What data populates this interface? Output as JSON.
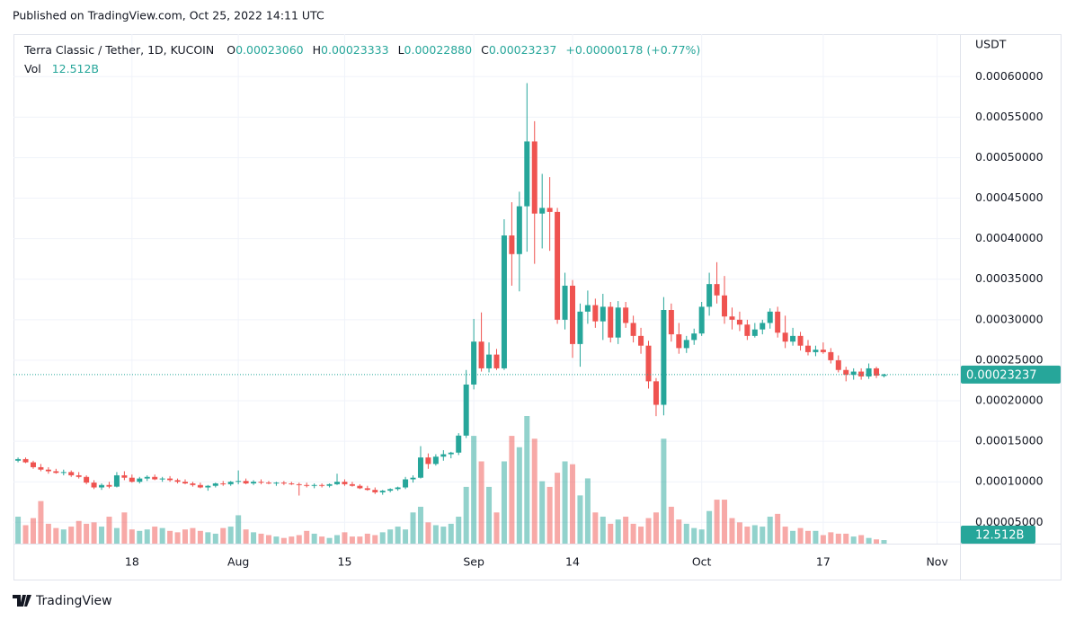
{
  "published": "Published on TradingView.com, Oct 25, 2022 14:11 UTC",
  "footer": "TradingView",
  "chart_data": {
    "type": "candlestick",
    "header": {
      "legend": "Terra Classic / Tether, 1D, KUCOIN",
      "ohlc": [
        {
          "key": "O",
          "label": "0.00023060"
        },
        {
          "key": "H",
          "label": "0.00023333"
        },
        {
          "key": "L",
          "label": "0.00022880"
        },
        {
          "key": "C",
          "label": "0.00023237"
        }
      ],
      "change": "+0.00000178 (+0.77%)",
      "volume_key": "Vol"
    },
    "currency": "USDT",
    "up_color": "#26a69a",
    "down_color": "#ef5350",
    "ohlc": [
      [
        0.000126,
        0.00013,
        0.000124,
        0.000128
      ],
      [
        0.000128,
        0.00013,
        0.000123,
        0.000124
      ],
      [
        0.000124,
        0.000126,
        0.000116,
        0.000118
      ],
      [
        0.000118,
        0.000122,
        0.000113,
        0.000115
      ],
      [
        0.000115,
        0.000118,
        0.00011,
        0.000113
      ],
      [
        0.000113,
        0.000116,
        0.00011,
        0.000111
      ],
      [
        0.000111,
        0.000115,
        0.000108,
        0.000112
      ],
      [
        0.000112,
        0.000114,
        0.000106,
        0.000108
      ],
      [
        0.000108,
        0.000112,
        0.000104,
        0.000106
      ],
      [
        0.000106,
        0.000108,
        9.7e-05,
        9.9e-05
      ],
      [
        9.9e-05,
        0.000102,
        9.1e-05,
        9.3e-05
      ],
      [
        9.3e-05,
        9.8e-05,
        9e-05,
        9.6e-05
      ],
      [
        9.6e-05,
        0.0001,
        9.2e-05,
        9.4e-05
      ],
      [
        9.4e-05,
        0.000112,
        9.3e-05,
        0.000108
      ],
      [
        0.000108,
        0.000113,
        0.000102,
        0.000105
      ],
      [
        0.000105,
        0.000109,
        9.9e-05,
        0.0001
      ],
      [
        0.0001,
        0.000106,
        9.8e-05,
        0.000104
      ],
      [
        0.000104,
        0.000108,
        0.000101,
        0.000106
      ],
      [
        0.000106,
        0.000109,
        0.000102,
        0.000103
      ],
      [
        0.000103,
        0.000106,
        0.0001,
        0.000104
      ],
      [
        0.000104,
        0.000107,
        0.0001,
        0.000102
      ],
      [
        0.000102,
        0.000104,
        9.8e-05,
        0.0001
      ],
      [
        0.0001,
        0.000103,
        9.7e-05,
        9.8e-05
      ],
      [
        9.8e-05,
        0.0001,
        9.4e-05,
        9.6e-05
      ],
      [
        9.6e-05,
        9.9e-05,
        9.2e-05,
        9.3e-05
      ],
      [
        9.3e-05,
        9.6e-05,
        8.9e-05,
        9.5e-05
      ],
      [
        9.5e-05,
        9.9e-05,
        9.3e-05,
        9.8e-05
      ],
      [
        9.8e-05,
        0.000101,
        9.5e-05,
        9.7e-05
      ],
      [
        9.7e-05,
        0.000101,
        9.5e-05,
        0.0001
      ],
      [
        0.0001,
        0.000114,
        9.7e-05,
        0.000101
      ],
      [
        0.000101,
        0.000104,
        9.7e-05,
        9.8e-05
      ],
      [
        9.8e-05,
        0.000102,
        9.6e-05,
        0.0001
      ],
      [
        0.0001,
        0.000103,
        9.7e-05,
        9.9e-05
      ],
      [
        9.9e-05,
        0.000101,
        9.7e-05,
        9.8e-05
      ],
      [
        9.8e-05,
        0.0001,
        9.5e-05,
        9.9e-05
      ],
      [
        9.9e-05,
        0.000101,
        9.6e-05,
        9.8e-05
      ],
      [
        9.8e-05,
        0.0001,
        9.6e-05,
        9.7e-05
      ],
      [
        9.7e-05,
        9.9e-05,
        8.3e-05,
        9.6e-05
      ],
      [
        9.6e-05,
        9.9e-05,
        9.3e-05,
        9.5e-05
      ],
      [
        9.5e-05,
        9.8e-05,
        9.2e-05,
        9.6e-05
      ],
      [
        9.6e-05,
        9.8e-05,
        9.3e-05,
        9.5e-05
      ],
      [
        9.5e-05,
        9.8e-05,
        9.3e-05,
        9.7e-05
      ],
      [
        9.7e-05,
        0.00011,
        9.6e-05,
        0.0001
      ],
      [
        0.0001,
        0.000103,
        9.5e-05,
        9.7e-05
      ],
      [
        9.7e-05,
        0.0001,
        9.4e-05,
        9.5e-05
      ],
      [
        9.5e-05,
        9.7e-05,
        9.1e-05,
        9.2e-05
      ],
      [
        9.2e-05,
        9.5e-05,
        8.9e-05,
        9e-05
      ],
      [
        9e-05,
        9.3e-05,
        8.5e-05,
        8.7e-05
      ],
      [
        8.7e-05,
        9e-05,
        8.4e-05,
        8.9e-05
      ],
      [
        8.9e-05,
        9.2e-05,
        8.7e-05,
        9.1e-05
      ],
      [
        9.1e-05,
        9.4e-05,
        8.9e-05,
        9.3e-05
      ],
      [
        9.3e-05,
        0.000106,
        9.1e-05,
        0.000103
      ],
      [
        0.000103,
        0.000108,
        9.9e-05,
        0.000105
      ],
      [
        0.000105,
        0.000144,
        0.000104,
        0.00013
      ],
      [
        0.00013,
        0.000135,
        0.000116,
        0.000122
      ],
      [
        0.000122,
        0.000134,
        0.00012,
        0.000131
      ],
      [
        0.000131,
        0.000139,
        0.000126,
        0.000134
      ],
      [
        0.000134,
        0.000137,
        0.000129,
        0.000136
      ],
      [
        0.000136,
        0.00016,
        0.000133,
        0.000157
      ],
      [
        0.000157,
        0.000238,
        0.000154,
        0.00022
      ],
      [
        0.00022,
        0.000301,
        0.000214,
        0.000273
      ],
      [
        0.000273,
        0.000309,
        0.000236,
        0.00024
      ],
      [
        0.00024,
        0.000272,
        0.000235,
        0.000257
      ],
      [
        0.000257,
        0.000264,
        0.000238,
        0.00024
      ],
      [
        0.00024,
        0.000424,
        0.000238,
        0.000404
      ],
      [
        0.000404,
        0.000445,
        0.000342,
        0.000381
      ],
      [
        0.000381,
        0.000458,
        0.000335,
        0.00044
      ],
      [
        0.00044,
        0.000592,
        0.000384,
        0.00052
      ],
      [
        0.00052,
        0.000545,
        0.000369,
        0.000431
      ],
      [
        0.000431,
        0.00048,
        0.000388,
        0.000438
      ],
      [
        0.000438,
        0.000476,
        0.000385,
        0.000433
      ],
      [
        0.000433,
        0.000438,
        0.000295,
        0.0003
      ],
      [
        0.0003,
        0.000358,
        0.000288,
        0.000342
      ],
      [
        0.000342,
        0.000349,
        0.000253,
        0.00027
      ],
      [
        0.00027,
        0.00032,
        0.000242,
        0.00031
      ],
      [
        0.00031,
        0.000336,
        0.000295,
        0.000318
      ],
      [
        0.000318,
        0.000326,
        0.00029,
        0.000298
      ],
      [
        0.000298,
        0.000332,
        0.000275,
        0.000316
      ],
      [
        0.000316,
        0.000322,
        0.000272,
        0.000278
      ],
      [
        0.000278,
        0.000323,
        0.00027,
        0.000315
      ],
      [
        0.000315,
        0.000322,
        0.00029,
        0.000296
      ],
      [
        0.000296,
        0.000305,
        0.000272,
        0.00028
      ],
      [
        0.00028,
        0.00029,
        0.000258,
        0.000268
      ],
      [
        0.000268,
        0.000274,
        0.000215,
        0.000224
      ],
      [
        0.000224,
        0.000228,
        0.000181,
        0.000195
      ],
      [
        0.000195,
        0.000328,
        0.000182,
        0.000312
      ],
      [
        0.000312,
        0.00032,
        0.000273,
        0.000282
      ],
      [
        0.000282,
        0.000296,
        0.000258,
        0.000265
      ],
      [
        0.000265,
        0.00028,
        0.000259,
        0.000275
      ],
      [
        0.000275,
        0.000289,
        0.000269,
        0.000283
      ],
      [
        0.000283,
        0.000322,
        0.00028,
        0.000316
      ],
      [
        0.000316,
        0.000358,
        0.000305,
        0.000344
      ],
      [
        0.000344,
        0.000371,
        0.00032,
        0.00033
      ],
      [
        0.00033,
        0.000354,
        0.000295,
        0.000304
      ],
      [
        0.000304,
        0.000315,
        0.000288,
        0.0003
      ],
      [
        0.0003,
        0.00031,
        0.000286,
        0.000294
      ],
      [
        0.000294,
        0.0003,
        0.000275,
        0.00028
      ],
      [
        0.00028,
        0.000296,
        0.000278,
        0.000288
      ],
      [
        0.000288,
        0.0003,
        0.000282,
        0.000296
      ],
      [
        0.000296,
        0.000314,
        0.000289,
        0.00031
      ],
      [
        0.00031,
        0.000316,
        0.000278,
        0.000284
      ],
      [
        0.000284,
        0.000305,
        0.000265,
        0.000273
      ],
      [
        0.000273,
        0.00029,
        0.000268,
        0.00028
      ],
      [
        0.00028,
        0.000285,
        0.000262,
        0.000268
      ],
      [
        0.000268,
        0.000275,
        0.000256,
        0.00026
      ],
      [
        0.00026,
        0.000268,
        0.000255,
        0.000263
      ],
      [
        0.000263,
        0.000272,
        0.000258,
        0.00026
      ],
      [
        0.00026,
        0.000265,
        0.000246,
        0.00025
      ],
      [
        0.00025,
        0.000256,
        0.000235,
        0.000238
      ],
      [
        0.000238,
        0.000242,
        0.000224,
        0.000232
      ],
      [
        0.000232,
        0.00024,
        0.000226,
        0.000236
      ],
      [
        0.000236,
        0.00024,
        0.000226,
        0.00023
      ],
      [
        0.00023,
        0.000246,
        0.000227,
        0.00024
      ],
      [
        0.00024,
        0.000242,
        0.000228,
        0.000231
      ],
      [
        0.0002306,
        0.00023333,
        0.0002288,
        0.00023237
      ]
    ],
    "volume": {
      "values": [
        95,
        65,
        90,
        150,
        70,
        55,
        50,
        60,
        80,
        70,
        75,
        60,
        95,
        55,
        110,
        50,
        45,
        50,
        60,
        55,
        45,
        40,
        50,
        55,
        45,
        40,
        35,
        55,
        60,
        100,
        50,
        40,
        35,
        30,
        25,
        20,
        25,
        30,
        45,
        35,
        25,
        20,
        30,
        40,
        25,
        25,
        35,
        30,
        40,
        50,
        60,
        50,
        110,
        130,
        75,
        65,
        60,
        70,
        95,
        200,
        380,
        290,
        200,
        110,
        290,
        380,
        340,
        450,
        370,
        220,
        200,
        250,
        290,
        280,
        170,
        230,
        110,
        95,
        70,
        85,
        95,
        70,
        60,
        90,
        110,
        370,
        130,
        85,
        70,
        55,
        50,
        115,
        155,
        155,
        90,
        75,
        60,
        65,
        60,
        95,
        105,
        60,
        45,
        55,
        45,
        45,
        30,
        40,
        35,
        35,
        25,
        30,
        20,
        15,
        12.512
      ],
      "last_label": "12.512B"
    },
    "xlim": [
      -0.6,
      124
    ],
    "xticks": [
      {
        "value": 15,
        "label": "18"
      },
      {
        "value": 29,
        "label": "Aug"
      },
      {
        "value": 43,
        "label": "15"
      },
      {
        "value": 60,
        "label": "Sep"
      },
      {
        "value": 73,
        "label": "14"
      },
      {
        "value": 90,
        "label": "Oct"
      },
      {
        "value": 106,
        "label": "17"
      },
      {
        "value": 121,
        "label": "Nov"
      }
    ],
    "ylim": [
      2.37e-05,
      0.000648
    ],
    "yticks": [
      {
        "value": 5e-05,
        "label": "0.00005000"
      },
      {
        "value": 0.0001,
        "label": "0.00010000"
      },
      {
        "value": 0.00015,
        "label": "0.00015000"
      },
      {
        "value": 0.0002,
        "label": "0.00020000"
      },
      {
        "value": 0.00025,
        "label": "0.00025000"
      },
      {
        "value": 0.0003,
        "label": "0.00030000"
      },
      {
        "value": 0.00035,
        "label": "0.00035000"
      },
      {
        "value": 0.0004,
        "label": "0.00040000"
      },
      {
        "value": 0.00045,
        "label": "0.00045000"
      },
      {
        "value": 0.0005,
        "label": "0.00050000"
      },
      {
        "value": 0.00055,
        "label": "0.00055000"
      },
      {
        "value": 0.0006,
        "label": "0.00060000"
      }
    ],
    "grid": true
  }
}
